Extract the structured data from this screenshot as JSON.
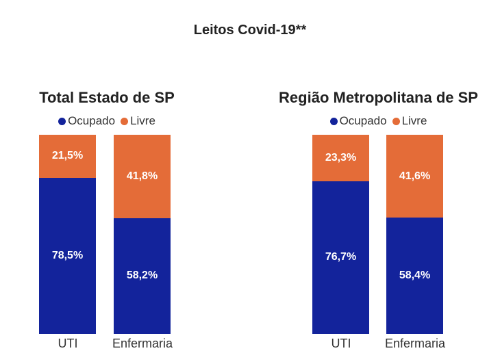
{
  "title": "Leitos Covid-19**",
  "colors": {
    "ocupado": "#13239b",
    "livre": "#e46c38"
  },
  "chart_data": [
    {
      "type": "bar",
      "stacked": true,
      "title": "Total Estado de SP",
      "legend": [
        "Ocupado",
        "Livre"
      ],
      "categories": [
        "UTI",
        "Enfermaria"
      ],
      "series": [
        {
          "name": "Ocupado",
          "values": [
            78.5,
            58.2
          ],
          "labels": [
            "78,5%",
            "58,2%"
          ]
        },
        {
          "name": "Livre",
          "values": [
            21.5,
            41.8
          ],
          "labels": [
            "21,5%",
            "41,8%"
          ]
        }
      ],
      "ylim": [
        0,
        100
      ]
    },
    {
      "type": "bar",
      "stacked": true,
      "title": "Região Metropolitana de SP",
      "legend": [
        "Ocupado",
        "Livre"
      ],
      "categories": [
        "UTI",
        "Enfermaria"
      ],
      "series": [
        {
          "name": "Ocupado",
          "values": [
            76.7,
            58.4
          ],
          "labels": [
            "76,7%",
            "58,4%"
          ]
        },
        {
          "name": "Livre",
          "values": [
            23.3,
            41.6
          ],
          "labels": [
            "23,3%",
            "41,6%"
          ]
        }
      ],
      "ylim": [
        0,
        100
      ]
    }
  ]
}
